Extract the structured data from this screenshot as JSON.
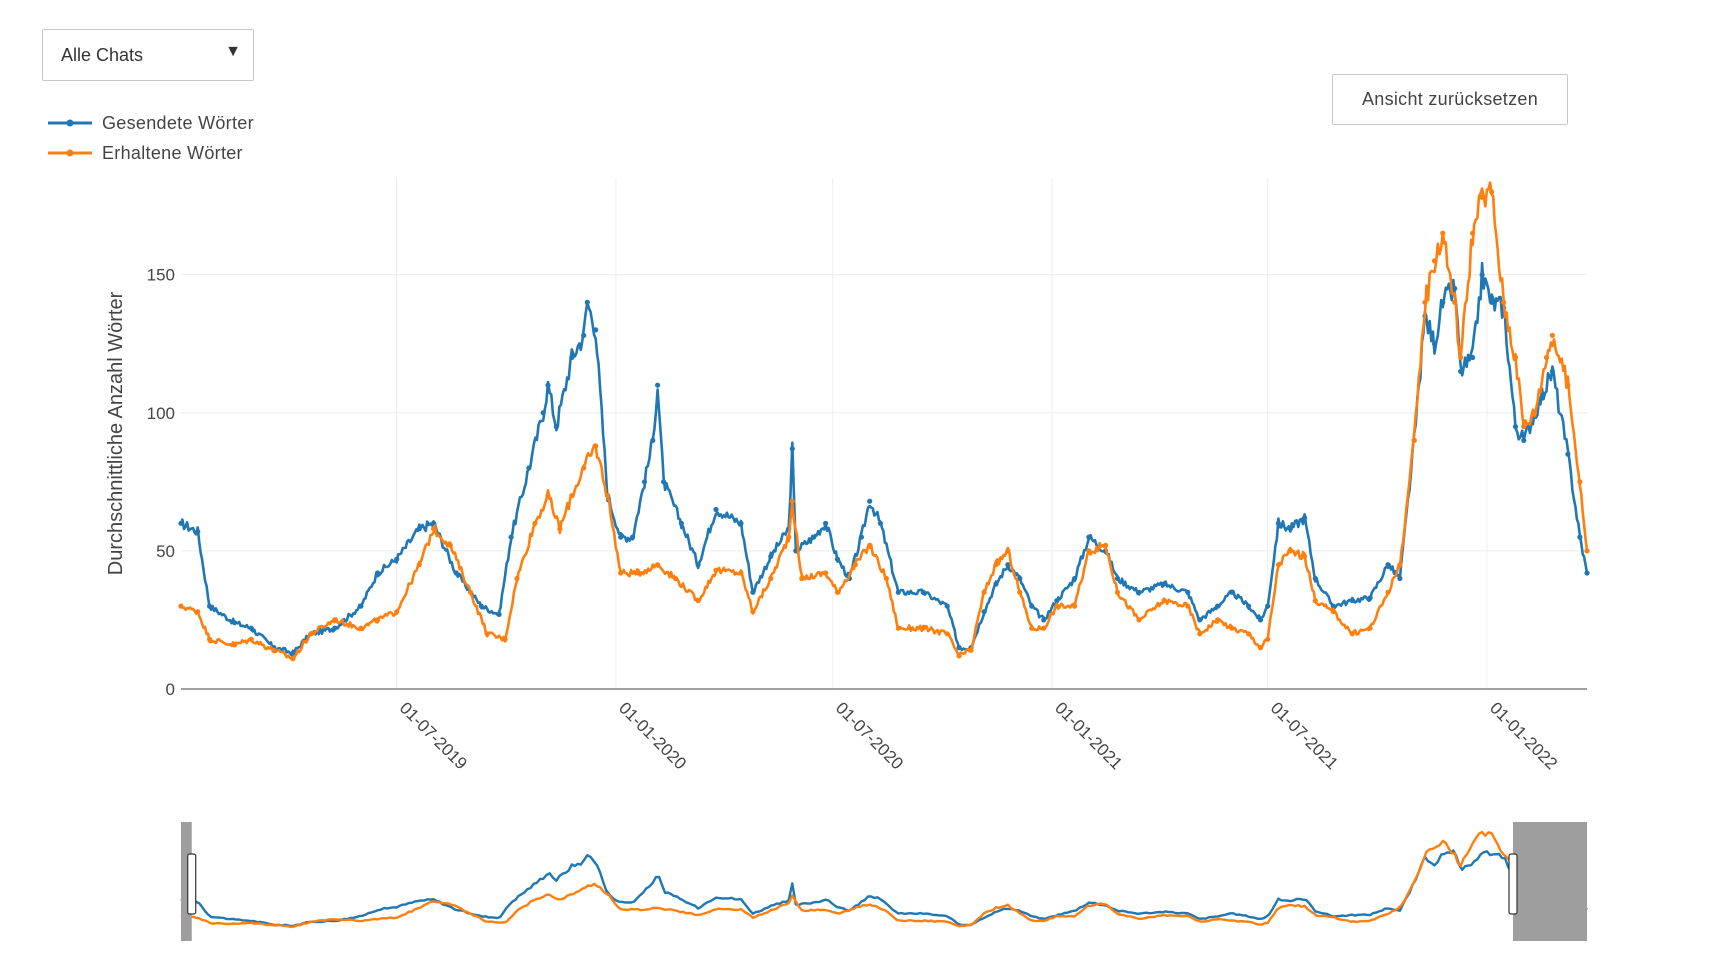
{
  "dropdown": {
    "selected": "Alle Chats"
  },
  "reset_button": {
    "label": "Ansicht zurücksetzen"
  },
  "colors": {
    "sent": "#1f77b4",
    "received": "#ff7f0e",
    "grid": "#eeeeee",
    "mask": "#9e9e9e"
  },
  "chart_data": {
    "type": "line",
    "ylabel": "Durchschnittliche Anzahl Wörter",
    "xlabel": "",
    "ylim": [
      0,
      185
    ],
    "yticks": [
      0,
      50,
      100,
      150
    ],
    "xticks": [
      "01-07-2019",
      "01-01-2020",
      "01-07-2020",
      "01-01-2021",
      "01-07-2021",
      "01-01-2022"
    ],
    "xrange": [
      "2019-01-01",
      "2022-03-26"
    ],
    "rangeslider": {
      "visible": true,
      "selected_from": "2019-01-10",
      "selected_to": "2022-03-26"
    },
    "legend_position": "top-left",
    "grid": true,
    "series": [
      {
        "name": "Gesendete Wörter",
        "color": "#1f77b4",
        "points": [
          [
            "2019-01-01",
            60
          ],
          [
            "2019-01-15",
            57
          ],
          [
            "2019-01-25",
            30
          ],
          [
            "2019-02-15",
            24
          ],
          [
            "2019-03-01",
            22
          ],
          [
            "2019-03-20",
            15
          ],
          [
            "2019-04-05",
            13
          ],
          [
            "2019-04-20",
            20
          ],
          [
            "2019-05-10",
            22
          ],
          [
            "2019-06-01",
            30
          ],
          [
            "2019-06-15",
            42
          ],
          [
            "2019-07-01",
            47
          ],
          [
            "2019-07-20",
            58
          ],
          [
            "2019-08-01",
            60
          ],
          [
            "2019-08-20",
            42
          ],
          [
            "2019-09-10",
            30
          ],
          [
            "2019-09-25",
            27
          ],
          [
            "2019-10-05",
            55
          ],
          [
            "2019-10-20",
            80
          ],
          [
            "2019-11-01",
            100
          ],
          [
            "2019-11-05",
            110
          ],
          [
            "2019-11-12",
            95
          ],
          [
            "2019-11-25",
            120
          ],
          [
            "2019-12-05",
            128
          ],
          [
            "2019-12-08",
            140
          ],
          [
            "2019-12-15",
            130
          ],
          [
            "2019-12-25",
            70
          ],
          [
            "2020-01-05",
            55
          ],
          [
            "2020-01-15",
            55
          ],
          [
            "2020-01-25",
            75
          ],
          [
            "2020-02-01",
            90
          ],
          [
            "2020-02-05",
            110
          ],
          [
            "2020-02-10",
            75
          ],
          [
            "2020-02-25",
            60
          ],
          [
            "2020-03-10",
            45
          ],
          [
            "2020-03-25",
            65
          ],
          [
            "2020-04-15",
            60
          ],
          [
            "2020-04-25",
            35
          ],
          [
            "2020-05-10",
            48
          ],
          [
            "2020-05-25",
            58
          ],
          [
            "2020-05-28",
            87
          ],
          [
            "2020-05-31",
            50
          ],
          [
            "2020-06-15",
            55
          ],
          [
            "2020-06-25",
            60
          ],
          [
            "2020-07-05",
            47
          ],
          [
            "2020-07-15",
            40
          ],
          [
            "2020-07-25",
            55
          ],
          [
            "2020-08-01",
            68
          ],
          [
            "2020-08-10",
            60
          ],
          [
            "2020-08-25",
            35
          ],
          [
            "2020-09-15",
            35
          ],
          [
            "2020-10-05",
            30
          ],
          [
            "2020-10-15",
            15
          ],
          [
            "2020-10-25",
            15
          ],
          [
            "2020-11-05",
            28
          ],
          [
            "2020-11-15",
            38
          ],
          [
            "2020-11-25",
            45
          ],
          [
            "2020-12-05",
            40
          ],
          [
            "2020-12-15",
            30
          ],
          [
            "2020-12-25",
            25
          ],
          [
            "2021-01-05",
            32
          ],
          [
            "2021-01-20",
            40
          ],
          [
            "2021-02-01",
            55
          ],
          [
            "2021-02-15",
            50
          ],
          [
            "2021-02-25",
            40
          ],
          [
            "2021-03-15",
            35
          ],
          [
            "2021-04-05",
            38
          ],
          [
            "2021-04-25",
            35
          ],
          [
            "2021-05-05",
            25
          ],
          [
            "2021-05-20",
            30
          ],
          [
            "2021-06-01",
            35
          ],
          [
            "2021-06-15",
            30
          ],
          [
            "2021-06-25",
            25
          ],
          [
            "2021-07-01",
            30
          ],
          [
            "2021-07-10",
            60
          ],
          [
            "2021-07-20",
            58
          ],
          [
            "2021-08-01",
            62
          ],
          [
            "2021-08-10",
            40
          ],
          [
            "2021-08-25",
            30
          ],
          [
            "2021-09-10",
            32
          ],
          [
            "2021-09-25",
            33
          ],
          [
            "2021-10-10",
            45
          ],
          [
            "2021-10-20",
            40
          ],
          [
            "2021-11-01",
            90
          ],
          [
            "2021-11-10",
            135
          ],
          [
            "2021-11-18",
            125
          ],
          [
            "2021-11-25",
            140
          ],
          [
            "2021-12-05",
            145
          ],
          [
            "2021-12-10",
            115
          ],
          [
            "2021-12-20",
            120
          ],
          [
            "2021-12-28",
            150
          ],
          [
            "2022-01-05",
            140
          ],
          [
            "2022-01-15",
            138
          ],
          [
            "2022-01-25",
            95
          ],
          [
            "2022-02-01",
            90
          ],
          [
            "2022-02-15",
            105
          ],
          [
            "2022-02-25",
            115
          ],
          [
            "2022-03-10",
            85
          ],
          [
            "2022-03-20",
            55
          ],
          [
            "2022-03-26",
            42
          ]
        ]
      },
      {
        "name": "Erhaltene Wörter",
        "color": "#ff7f0e",
        "points": [
          [
            "2019-01-01",
            30
          ],
          [
            "2019-01-15",
            28
          ],
          [
            "2019-01-25",
            18
          ],
          [
            "2019-02-15",
            16
          ],
          [
            "2019-03-01",
            18
          ],
          [
            "2019-03-20",
            14
          ],
          [
            "2019-04-05",
            11
          ],
          [
            "2019-04-20",
            20
          ],
          [
            "2019-05-10",
            25
          ],
          [
            "2019-06-01",
            22
          ],
          [
            "2019-06-15",
            25
          ],
          [
            "2019-07-01",
            28
          ],
          [
            "2019-07-20",
            45
          ],
          [
            "2019-08-01",
            58
          ],
          [
            "2019-08-15",
            52
          ],
          [
            "2019-09-01",
            35
          ],
          [
            "2019-09-15",
            20
          ],
          [
            "2019-09-30",
            18
          ],
          [
            "2019-10-10",
            40
          ],
          [
            "2019-10-25",
            60
          ],
          [
            "2019-11-05",
            70
          ],
          [
            "2019-11-15",
            58
          ],
          [
            "2019-11-25",
            70
          ],
          [
            "2019-12-05",
            80
          ],
          [
            "2019-12-15",
            88
          ],
          [
            "2019-12-25",
            70
          ],
          [
            "2020-01-05",
            42
          ],
          [
            "2020-01-20",
            42
          ],
          [
            "2020-02-05",
            45
          ],
          [
            "2020-02-20",
            40
          ],
          [
            "2020-03-10",
            32
          ],
          [
            "2020-03-25",
            43
          ],
          [
            "2020-04-15",
            42
          ],
          [
            "2020-04-25",
            28
          ],
          [
            "2020-05-10",
            40
          ],
          [
            "2020-05-25",
            55
          ],
          [
            "2020-05-28",
            68
          ],
          [
            "2020-06-05",
            40
          ],
          [
            "2020-06-25",
            42
          ],
          [
            "2020-07-05",
            35
          ],
          [
            "2020-07-20",
            45
          ],
          [
            "2020-08-01",
            52
          ],
          [
            "2020-08-15",
            40
          ],
          [
            "2020-08-25",
            22
          ],
          [
            "2020-09-15",
            22
          ],
          [
            "2020-10-05",
            20
          ],
          [
            "2020-10-15",
            12
          ],
          [
            "2020-10-25",
            14
          ],
          [
            "2020-11-05",
            35
          ],
          [
            "2020-11-15",
            45
          ],
          [
            "2020-11-25",
            50
          ],
          [
            "2020-12-05",
            35
          ],
          [
            "2020-12-15",
            22
          ],
          [
            "2020-12-25",
            22
          ],
          [
            "2021-01-05",
            30
          ],
          [
            "2021-01-20",
            30
          ],
          [
            "2021-02-01",
            50
          ],
          [
            "2021-02-15",
            52
          ],
          [
            "2021-02-25",
            35
          ],
          [
            "2021-03-15",
            25
          ],
          [
            "2021-04-05",
            32
          ],
          [
            "2021-04-25",
            30
          ],
          [
            "2021-05-05",
            20
          ],
          [
            "2021-05-20",
            25
          ],
          [
            "2021-06-01",
            22
          ],
          [
            "2021-06-15",
            20
          ],
          [
            "2021-06-25",
            15
          ],
          [
            "2021-07-01",
            18
          ],
          [
            "2021-07-10",
            45
          ],
          [
            "2021-07-20",
            50
          ],
          [
            "2021-08-01",
            48
          ],
          [
            "2021-08-10",
            32
          ],
          [
            "2021-08-25",
            28
          ],
          [
            "2021-09-10",
            20
          ],
          [
            "2021-09-25",
            22
          ],
          [
            "2021-10-10",
            35
          ],
          [
            "2021-10-20",
            45
          ],
          [
            "2021-11-01",
            90
          ],
          [
            "2021-11-10",
            140
          ],
          [
            "2021-11-18",
            155
          ],
          [
            "2021-11-25",
            165
          ],
          [
            "2021-12-05",
            140
          ],
          [
            "2021-12-10",
            120
          ],
          [
            "2021-12-20",
            165
          ],
          [
            "2021-12-28",
            178
          ],
          [
            "2022-01-05",
            180
          ],
          [
            "2022-01-15",
            140
          ],
          [
            "2022-01-25",
            120
          ],
          [
            "2022-02-01",
            95
          ],
          [
            "2022-02-10",
            100
          ],
          [
            "2022-02-20",
            120
          ],
          [
            "2022-02-25",
            128
          ],
          [
            "2022-03-10",
            110
          ],
          [
            "2022-03-20",
            75
          ],
          [
            "2022-03-26",
            50
          ]
        ]
      }
    ]
  }
}
